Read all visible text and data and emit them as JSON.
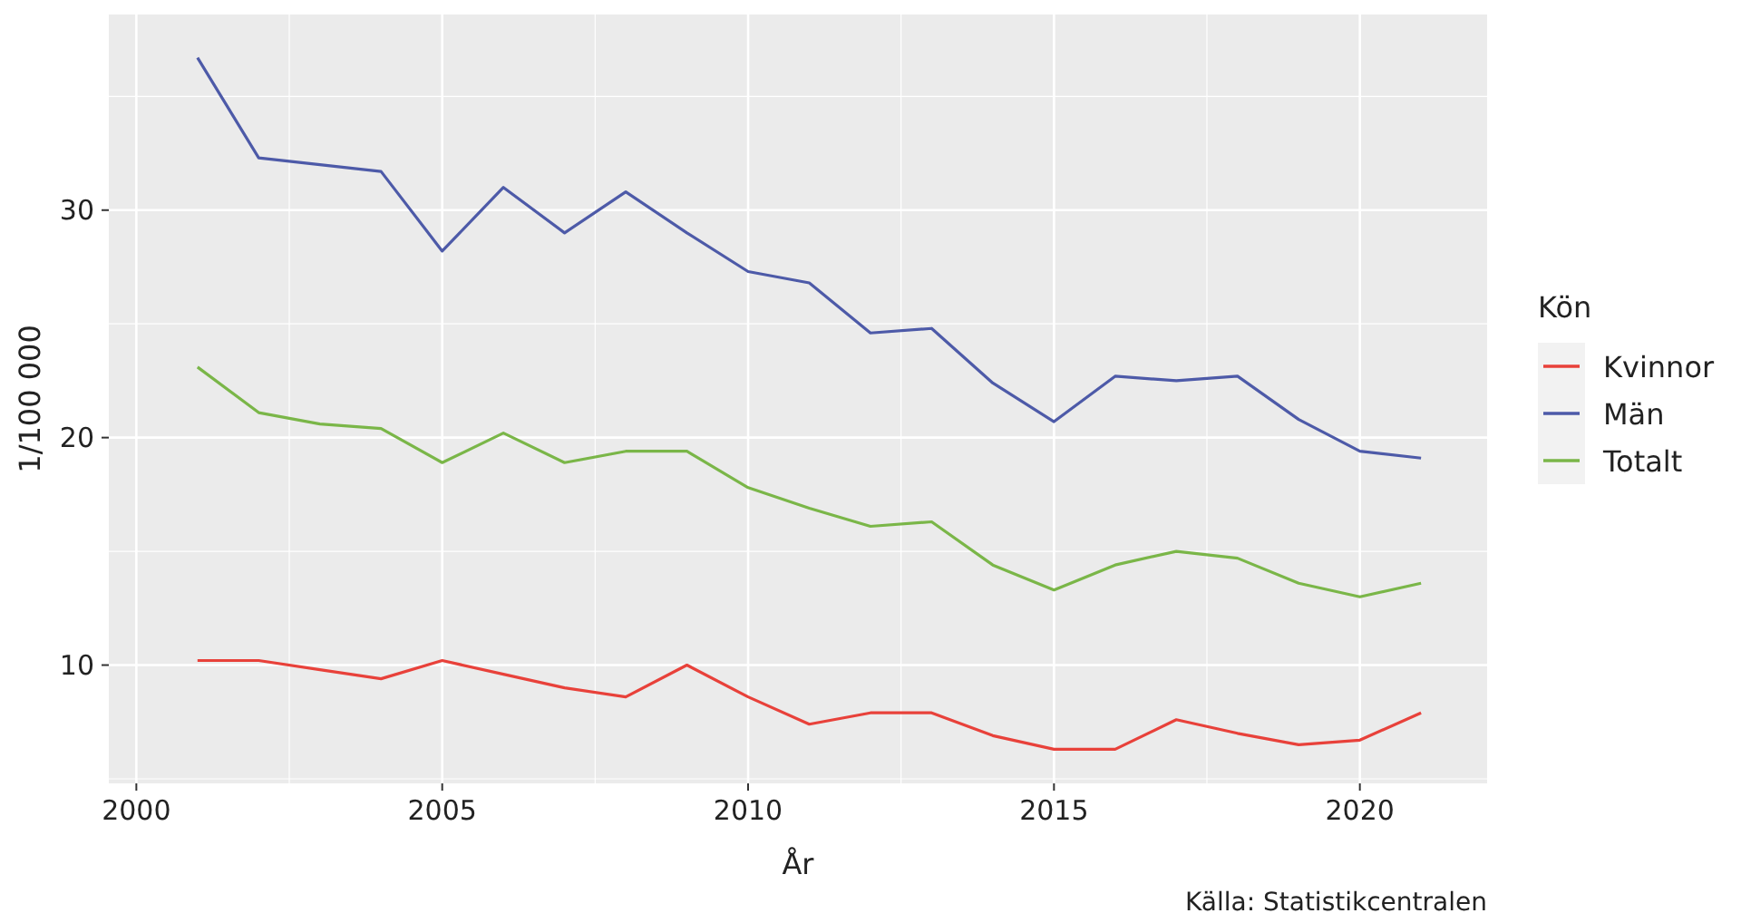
{
  "chart_data": {
    "type": "line",
    "xlabel": "År",
    "ylabel": "1/100 000",
    "legend_title": "Kön",
    "annotations": [
      "Källa: Statistikcentralen"
    ],
    "x": [
      2001,
      2002,
      2003,
      2004,
      2005,
      2006,
      2007,
      2008,
      2009,
      2010,
      2011,
      2012,
      2013,
      2014,
      2015,
      2016,
      2017,
      2018,
      2019,
      2020,
      2021
    ],
    "series": [
      {
        "name": "Kvinnor",
        "color": "#e8413a",
        "values": [
          10.2,
          10.2,
          9.8,
          9.4,
          10.2,
          9.6,
          9.0,
          8.6,
          10.0,
          8.6,
          7.4,
          7.9,
          7.9,
          6.9,
          6.3,
          6.3,
          7.6,
          7.0,
          6.5,
          6.7,
          7.9
        ]
      },
      {
        "name": "Män",
        "color": "#4d5aa8",
        "values": [
          36.7,
          32.3,
          32.0,
          31.7,
          28.2,
          31.0,
          29.0,
          30.8,
          29.0,
          27.3,
          26.8,
          24.6,
          24.8,
          22.4,
          20.7,
          22.7,
          22.5,
          22.7,
          20.8,
          19.4,
          19.1
        ]
      },
      {
        "name": "Totalt",
        "color": "#7ab648",
        "values": [
          23.1,
          21.1,
          20.6,
          20.4,
          18.9,
          20.2,
          18.9,
          19.4,
          19.4,
          17.8,
          16.9,
          16.1,
          16.3,
          14.4,
          13.3,
          14.4,
          15.0,
          14.7,
          13.6,
          13.0,
          13.6
        ]
      }
    ],
    "xlim": [
      1999.55,
      2022.08
    ],
    "ylim": [
      4.8,
      38.6
    ],
    "xticks": [
      2000,
      2005,
      2010,
      2015,
      2020
    ],
    "yticks": [
      10,
      20,
      30
    ],
    "grid": true,
    "legend": "right"
  }
}
